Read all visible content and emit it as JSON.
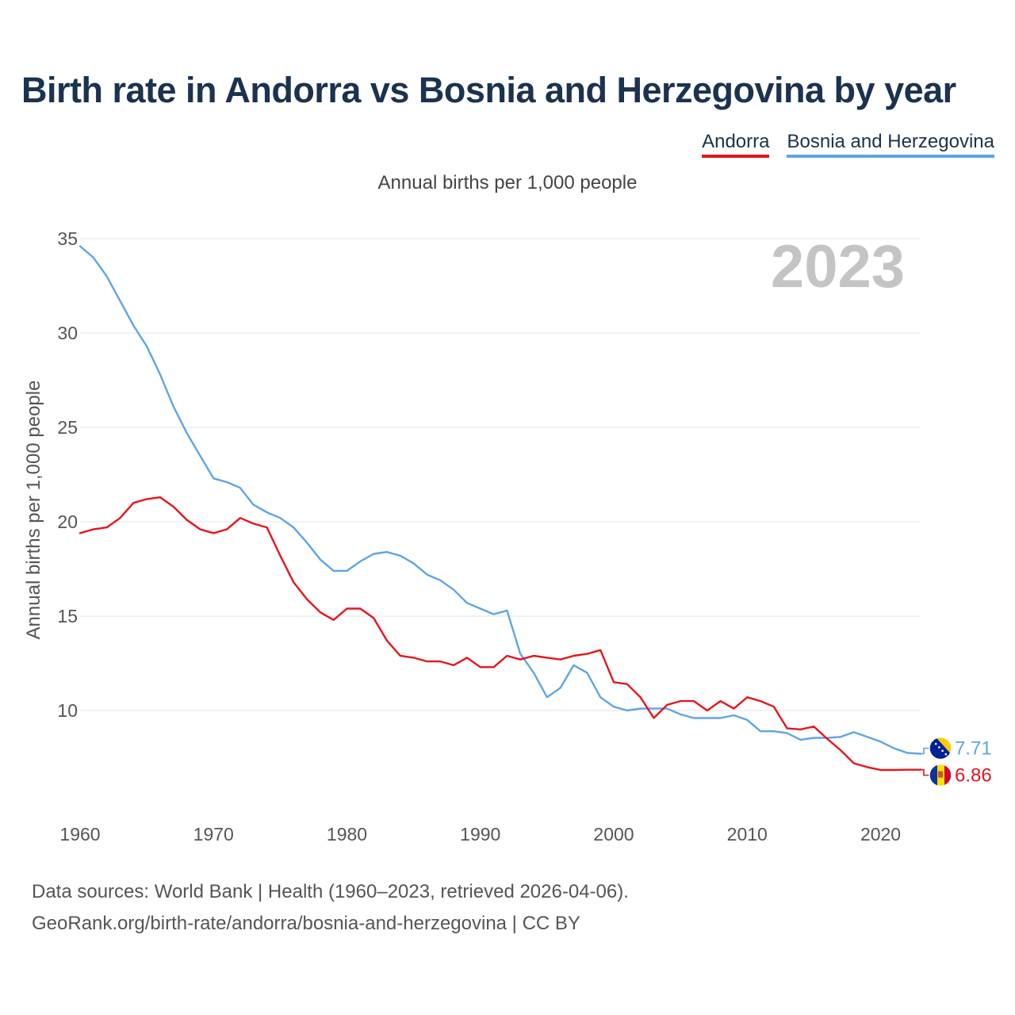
{
  "title": "Birth rate in Andorra vs Bosnia and Herzegovina by year",
  "legend": {
    "andorra": "Andorra",
    "bih": "Bosnia and Herzegovina"
  },
  "subtitle": "Annual births per 1,000 people",
  "source": {
    "line1": "Data sources: World Bank | Health (1960–2023, retrieved 2026-04-06).",
    "line2": "GeoRank.org/birth-rate/andorra/bosnia-and-herzegovina | CC BY"
  },
  "chart_data": {
    "type": "line",
    "title": "Birth rate in Andorra vs Bosnia and Herzegovina by year",
    "ylabel": "Annual births per 1,000 people",
    "xlabel": "",
    "xlim": [
      1960,
      2023
    ],
    "ylim": [
      5,
      35
    ],
    "yticks": [
      10,
      15,
      20,
      25,
      30,
      35
    ],
    "xticks": [
      1960,
      1970,
      1980,
      1990,
      2000,
      2010,
      2020
    ],
    "grid": true,
    "year_label": "2023",
    "x": [
      1960,
      1961,
      1962,
      1963,
      1964,
      1965,
      1966,
      1967,
      1968,
      1969,
      1970,
      1971,
      1972,
      1973,
      1974,
      1975,
      1976,
      1977,
      1978,
      1979,
      1980,
      1981,
      1982,
      1983,
      1984,
      1985,
      1986,
      1987,
      1988,
      1989,
      1990,
      1991,
      1992,
      1993,
      1994,
      1995,
      1996,
      1997,
      1998,
      1999,
      2000,
      2001,
      2002,
      2003,
      2004,
      2005,
      2006,
      2007,
      2008,
      2009,
      2010,
      2011,
      2012,
      2013,
      2014,
      2015,
      2016,
      2017,
      2018,
      2019,
      2020,
      2021,
      2022,
      2023
    ],
    "series": [
      {
        "name": "Andorra",
        "color": "#e8141c",
        "end_label": "6.86",
        "values": [
          19.4,
          19.6,
          19.7,
          20.2,
          21.0,
          21.2,
          21.3,
          20.8,
          20.1,
          19.6,
          19.4,
          19.6,
          20.2,
          19.9,
          19.7,
          18.2,
          16.8,
          15.9,
          15.2,
          14.8,
          15.4,
          15.4,
          14.9,
          13.7,
          12.9,
          12.8,
          12.6,
          12.6,
          12.4,
          12.8,
          12.3,
          12.3,
          12.9,
          12.7,
          12.9,
          12.8,
          12.7,
          12.9,
          13.0,
          13.2,
          11.5,
          11.4,
          10.7,
          9.6,
          10.3,
          10.5,
          10.5,
          10.0,
          10.5,
          10.1,
          10.7,
          10.5,
          10.2,
          9.05,
          9.0,
          9.15,
          8.5,
          7.9,
          7.2,
          7.0,
          6.85,
          6.85,
          6.86,
          6.86
        ]
      },
      {
        "name": "Bosnia and Herzegovina",
        "color": "#5ea5e6",
        "end_label": "7.71",
        "values": [
          34.6,
          34.0,
          33.0,
          31.7,
          30.4,
          29.3,
          27.8,
          26.1,
          24.7,
          23.5,
          22.3,
          22.1,
          21.8,
          20.9,
          20.5,
          20.2,
          19.7,
          18.9,
          18.0,
          17.4,
          17.4,
          17.9,
          18.3,
          18.4,
          18.2,
          17.8,
          17.2,
          16.9,
          16.4,
          15.7,
          15.4,
          15.1,
          15.3,
          13.0,
          12.0,
          10.7,
          11.2,
          12.4,
          12.0,
          10.7,
          10.2,
          10.0,
          10.1,
          10.1,
          10.1,
          9.8,
          9.6,
          9.6,
          9.6,
          9.75,
          9.5,
          8.9,
          8.9,
          8.8,
          8.45,
          8.55,
          8.55,
          8.6,
          8.85,
          8.6,
          8.35,
          8.0,
          7.75,
          7.71
        ]
      }
    ]
  }
}
